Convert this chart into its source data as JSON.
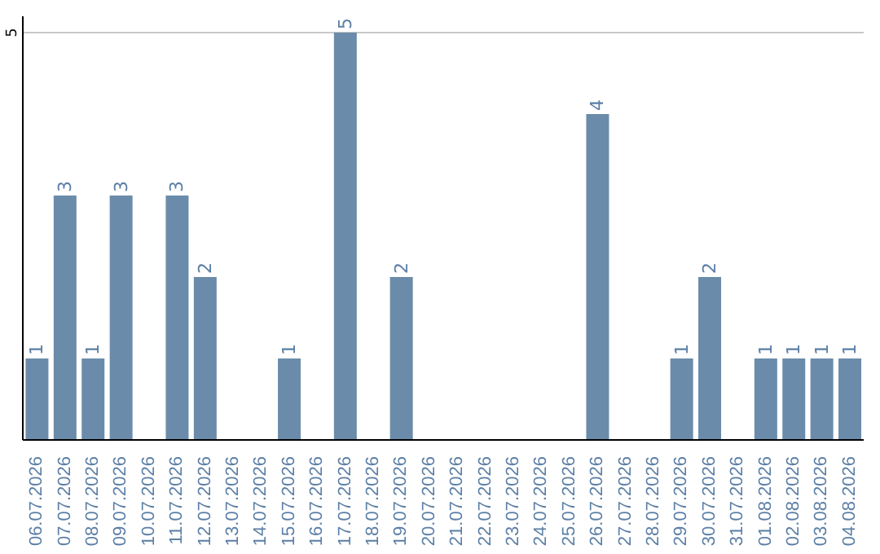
{
  "chart_data": {
    "type": "bar",
    "categories": [
      "06.07.2026",
      "07.07.2026",
      "08.07.2026",
      "09.07.2026",
      "10.07.2026",
      "11.07.2026",
      "12.07.2026",
      "13.07.2026",
      "14.07.2026",
      "15.07.2026",
      "16.07.2026",
      "17.07.2026",
      "18.07.2026",
      "19.07.2026",
      "20.07.2026",
      "21.07.2026",
      "22.07.2026",
      "23.07.2026",
      "24.07.2026",
      "25.07.2026",
      "26.07.2026",
      "27.07.2026",
      "28.07.2026",
      "29.07.2026",
      "30.07.2026",
      "31.07.2026",
      "01.08.2026",
      "02.08.2026",
      "03.08.2026",
      "04.08.2026"
    ],
    "values": [
      1,
      3,
      1,
      3,
      null,
      3,
      2,
      null,
      null,
      1,
      null,
      5,
      null,
      2,
      null,
      null,
      null,
      null,
      null,
      null,
      4,
      null,
      null,
      1,
      2,
      null,
      1,
      1,
      1,
      1
    ],
    "color": "#6a8caa",
    "ylim": [
      0,
      5.2
    ],
    "yticks": [
      5
    ],
    "grid": "y",
    "data_labels": true
  }
}
